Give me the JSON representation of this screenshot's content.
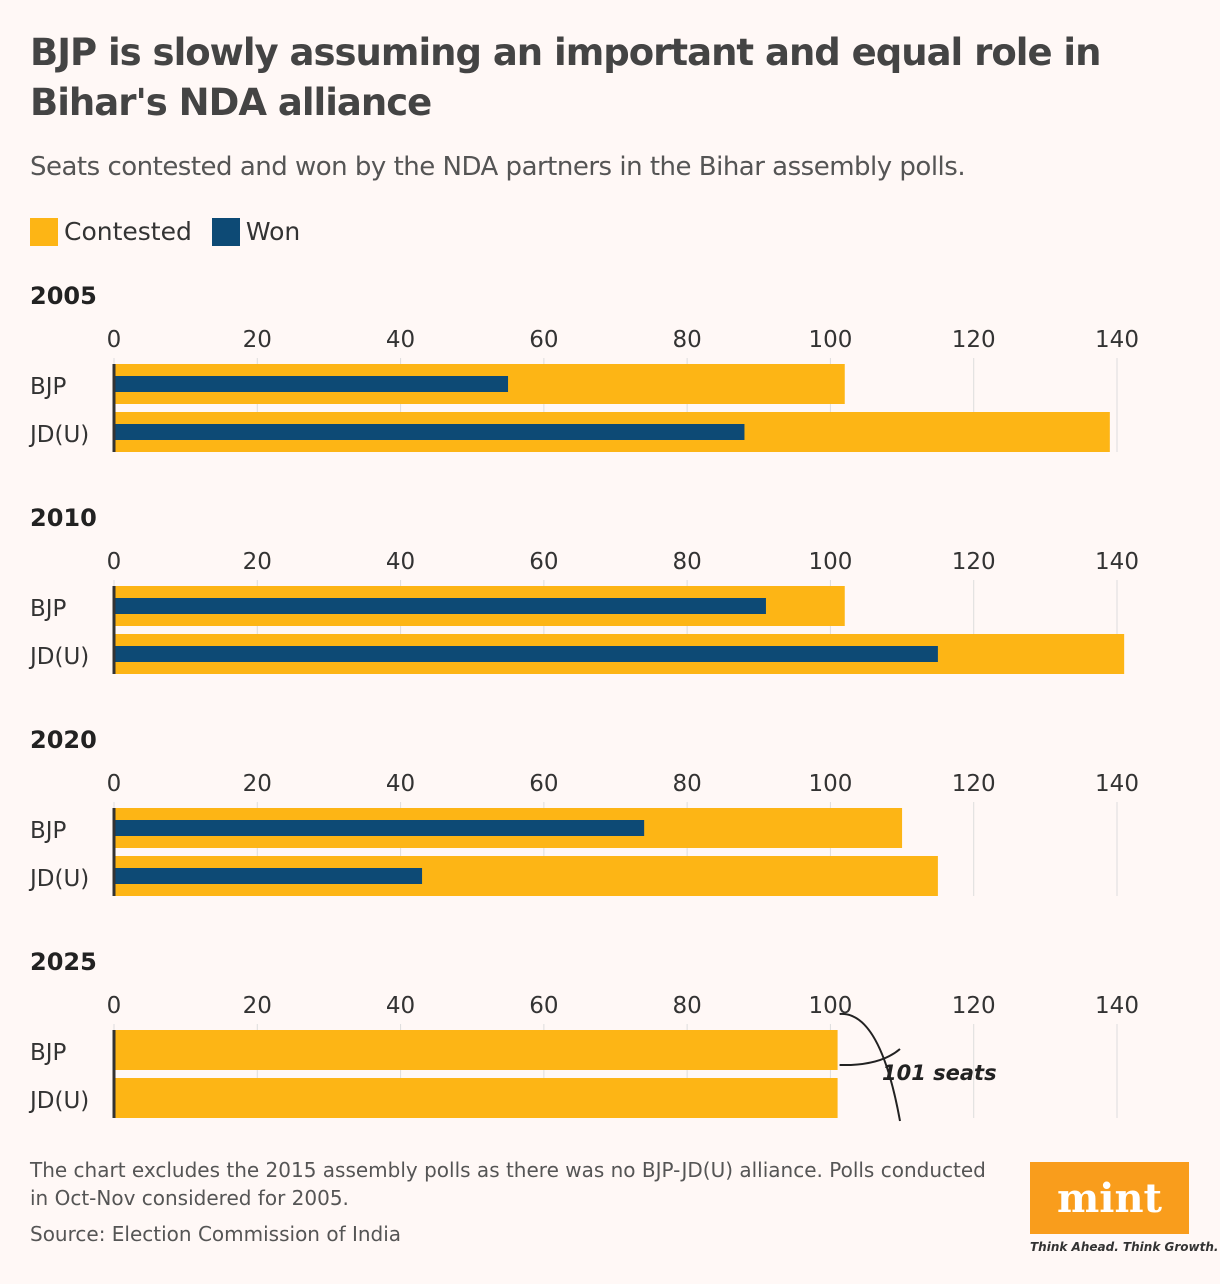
{
  "title": "BJP is slowly assuming an important and equal role in Bihar's NDA alliance",
  "subtitle": "Seats contested and won by the NDA partners in the Bihar assembly polls.",
  "colors": {
    "contested": "#fdb515",
    "won": "#0d4a75",
    "grid": "#dddddd",
    "axis": "#333333"
  },
  "legend": [
    {
      "label": "Contested",
      "color": "#fdb515"
    },
    {
      "label": "Won",
      "color": "#0d4a75"
    }
  ],
  "chart_data": [
    {
      "type": "bar",
      "orientation": "horizontal",
      "title": "2005",
      "categories": [
        "BJP",
        "JD(U)"
      ],
      "xlim": [
        0,
        140
      ],
      "ticks": [
        "0",
        "20",
        "40",
        "60",
        "80",
        "100",
        "120",
        "140"
      ],
      "series": [
        {
          "name": "Contested",
          "values": [
            102,
            139
          ]
        },
        {
          "name": "Won",
          "values": [
            55,
            88
          ]
        }
      ]
    },
    {
      "type": "bar",
      "orientation": "horizontal",
      "title": "2010",
      "categories": [
        "BJP",
        "JD(U)"
      ],
      "xlim": [
        0,
        140
      ],
      "ticks": [
        "0",
        "20",
        "40",
        "60",
        "80",
        "100",
        "120",
        "140"
      ],
      "series": [
        {
          "name": "Contested",
          "values": [
            102,
            141
          ]
        },
        {
          "name": "Won",
          "values": [
            91,
            115
          ]
        }
      ]
    },
    {
      "type": "bar",
      "orientation": "horizontal",
      "title": "2020",
      "categories": [
        "BJP",
        "JD(U)"
      ],
      "xlim": [
        0,
        140
      ],
      "ticks": [
        "0",
        "20",
        "40",
        "60",
        "80",
        "100",
        "120",
        "140"
      ],
      "series": [
        {
          "name": "Contested",
          "values": [
            110,
            115
          ]
        },
        {
          "name": "Won",
          "values": [
            74,
            43
          ]
        }
      ]
    },
    {
      "type": "bar",
      "orientation": "horizontal",
      "title": "2025",
      "categories": [
        "BJP",
        "JD(U)"
      ],
      "xlim": [
        0,
        140
      ],
      "ticks": [
        "0",
        "20",
        "40",
        "60",
        "80",
        "100",
        "120",
        "140"
      ],
      "series": [
        {
          "name": "Contested",
          "values": [
            101,
            101
          ]
        }
      ],
      "annotation": "101 seats"
    }
  ],
  "footnote": "The chart excludes the 2015 assembly polls as there was no BJP-JD(U) alliance. Polls conducted in Oct-Nov considered for 2005.",
  "source": "Source: Election Commission of India",
  "logo": {
    "text": "mint",
    "tagline": "Think Ahead. Think Growth."
  }
}
